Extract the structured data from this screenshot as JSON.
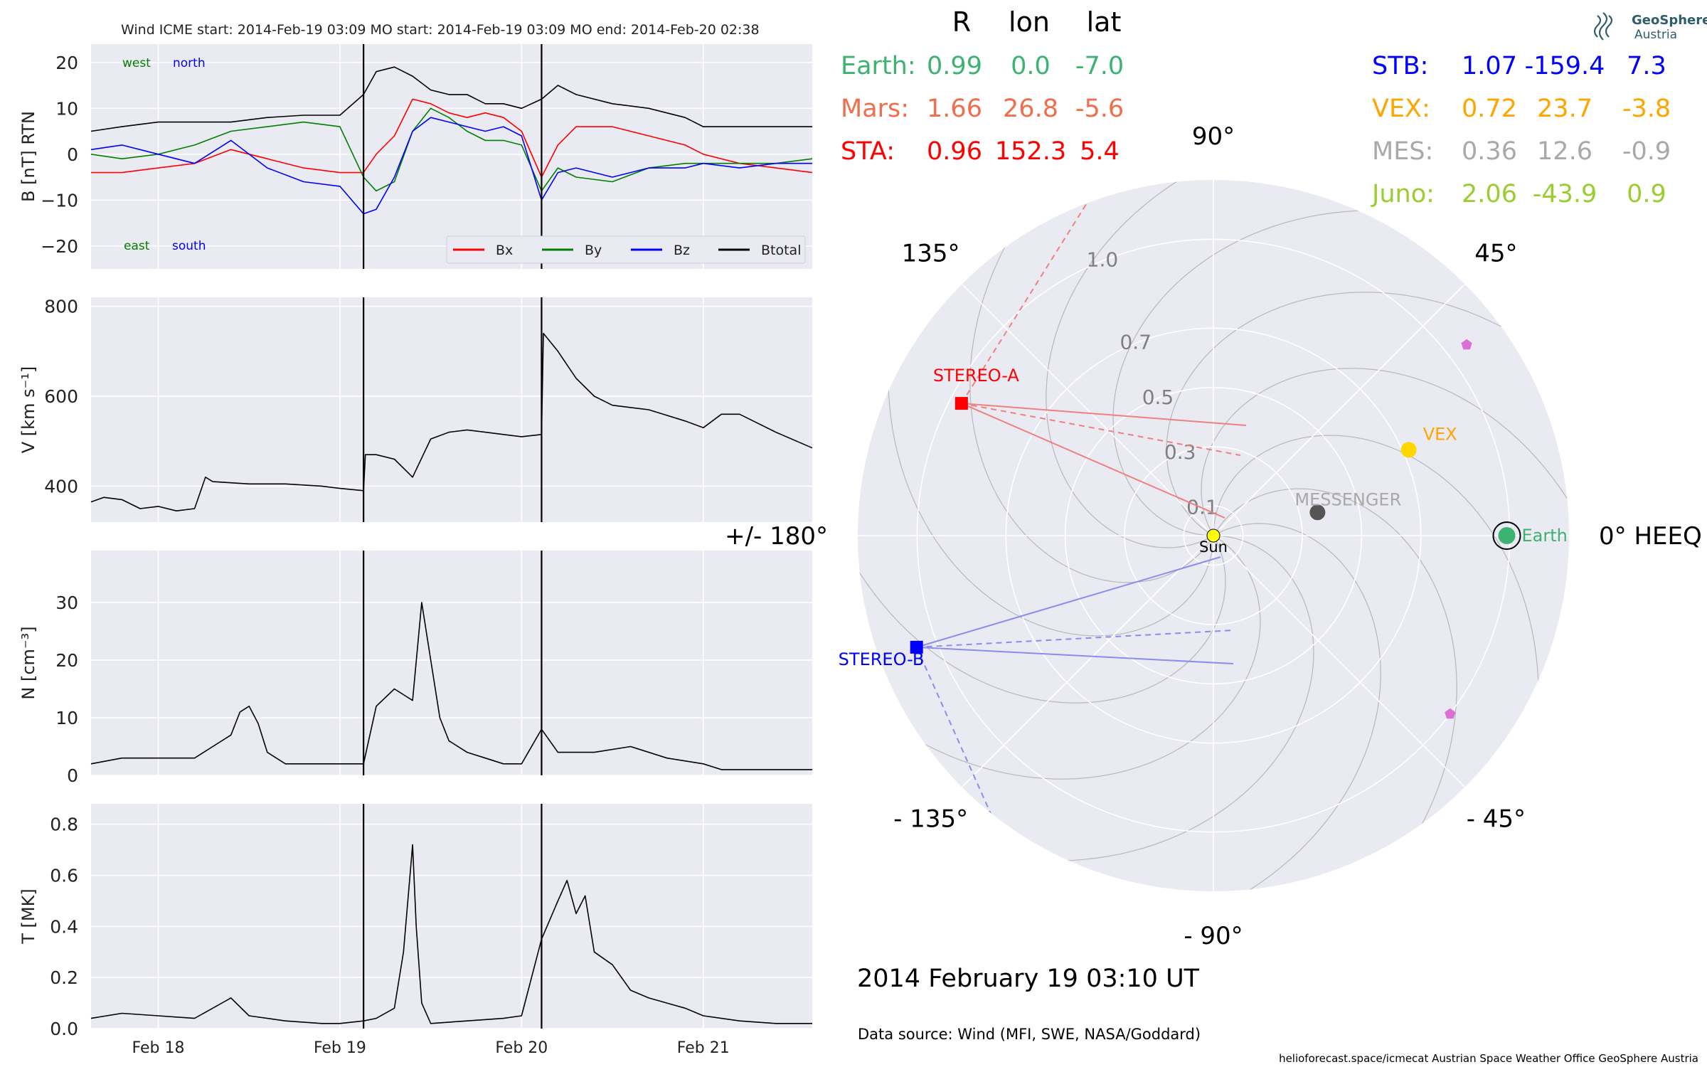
{
  "header": {
    "text": "Wind    ICME start: 2014-Feb-19 03:09   MO start: 2014-Feb-19 03:09   MO end: 2014-Feb-20 02:38"
  },
  "footer": {
    "timestamp": "2014 February 19  03:10 UT",
    "data_source": "Data source: Wind (MFI, SWE, NASA/Goddard)",
    "credits": "helioforecast.space/icmecat   Austrian Space Weather Office   GeoSphere Austria",
    "logo_line1": "GeoSphere",
    "logo_line2": "Austria"
  },
  "table": {
    "headers": [
      "R",
      "lon",
      "lat"
    ],
    "left": [
      {
        "name": "Earth:",
        "R": "0.99",
        "lon": "0.0",
        "lat": "-7.0",
        "color": "#3cb371"
      },
      {
        "name": "Mars:",
        "R": "1.66",
        "lon": "26.8",
        "lat": "-5.6",
        "color": "#f26d4b"
      },
      {
        "name": "STA:",
        "R": "0.96",
        "lon": "152.3",
        "lat": "5.4",
        "color": "#ff0000"
      }
    ],
    "right": [
      {
        "name": "STB:",
        "R": "1.07",
        "lon": "-159.4",
        "lat": "7.3",
        "color": "#0000ff"
      },
      {
        "name": "VEX:",
        "R": "0.72",
        "lon": "23.7",
        "lat": "-3.8",
        "color": "#ffa500"
      },
      {
        "name": "MES:",
        "R": "0.36",
        "lon": "12.6",
        "lat": "-0.9",
        "color": "#a9a9a9"
      },
      {
        "name": "Juno:",
        "R": "2.06",
        "lon": "-43.9",
        "lat": "0.9",
        "color": "#9acd32"
      }
    ]
  },
  "chart_data": [
    {
      "type": "line",
      "ylabel": "B [nT] RTN",
      "ylim": [
        -25,
        24
      ],
      "yticks": [
        "20",
        "10",
        "0",
        "−10",
        "−20"
      ],
      "xticks": [
        "Feb 18",
        "Feb 19",
        "Feb 20",
        "Feb 21"
      ],
      "grid": true,
      "annotations": {
        "west": "west",
        "north": "north",
        "east": "east",
        "south": "south"
      },
      "legend": {
        "placement": "lower-right",
        "entries": [
          "Bx",
          "By",
          "Bz",
          "Btotal"
        ]
      },
      "colors": {
        "Bx": "#ff0000",
        "By": "#008000",
        "Bz": "#0000ff",
        "Btotal": "#000000",
        "annot_west": "#008000",
        "annot_north": "#0000ff",
        "annot_east": "#008000",
        "annot_south": "#0000ff"
      },
      "vlines_day": [
        19.13,
        20.11
      ],
      "series": [
        {
          "name": "Btotal",
          "x": [
            17.63,
            17.8,
            18.0,
            18.2,
            18.4,
            18.6,
            18.8,
            19.0,
            19.13,
            19.2,
            19.3,
            19.4,
            19.5,
            19.6,
            19.7,
            19.8,
            19.9,
            20.0,
            20.11,
            20.2,
            20.3,
            20.5,
            20.7,
            20.9,
            21.0,
            21.2,
            21.4,
            21.6
          ],
          "y": [
            5,
            6,
            7,
            7,
            7,
            8,
            8.5,
            8.5,
            13,
            18,
            19,
            17,
            14,
            13,
            13,
            11,
            11,
            10,
            12,
            15,
            13,
            11,
            10,
            8,
            6,
            6,
            6,
            6
          ]
        },
        {
          "name": "Bx",
          "x": [
            17.63,
            17.8,
            18.0,
            18.2,
            18.4,
            18.6,
            18.8,
            19.0,
            19.13,
            19.2,
            19.3,
            19.4,
            19.5,
            19.6,
            19.7,
            19.8,
            19.9,
            20.0,
            20.11,
            20.2,
            20.3,
            20.5,
            20.7,
            20.9,
            21.0,
            21.2,
            21.4,
            21.6
          ],
          "y": [
            -4,
            -4,
            -3,
            -2,
            1,
            -1,
            -3,
            -4,
            -4,
            0,
            4,
            12,
            11,
            9,
            8,
            9,
            8,
            5,
            -5,
            2,
            6,
            6,
            4,
            2,
            0,
            -2,
            -3,
            -4
          ]
        },
        {
          "name": "By",
          "x": [
            17.63,
            17.8,
            18.0,
            18.2,
            18.4,
            18.6,
            18.8,
            19.0,
            19.13,
            19.2,
            19.3,
            19.4,
            19.5,
            19.6,
            19.7,
            19.8,
            19.9,
            20.0,
            20.11,
            20.2,
            20.3,
            20.5,
            20.7,
            20.9,
            21.0,
            21.2,
            21.4,
            21.6
          ],
          "y": [
            0,
            -1,
            0,
            2,
            5,
            6,
            7,
            6,
            -5,
            -8,
            -6,
            5,
            10,
            8,
            5,
            3,
            3,
            2,
            -8,
            -3,
            -5,
            -6,
            -3,
            -2,
            -2,
            -2,
            -2,
            -1
          ]
        },
        {
          "name": "Bz",
          "x": [
            17.63,
            17.8,
            18.0,
            18.2,
            18.4,
            18.6,
            18.8,
            19.0,
            19.13,
            19.2,
            19.3,
            19.4,
            19.5,
            19.6,
            19.7,
            19.8,
            19.9,
            20.0,
            20.11,
            20.2,
            20.3,
            20.5,
            20.7,
            20.9,
            21.0,
            21.2,
            21.4,
            21.6
          ],
          "y": [
            1,
            2,
            0,
            -2,
            3,
            -3,
            -6,
            -7,
            -13,
            -12,
            -5,
            5,
            8,
            7,
            6,
            5,
            6,
            4,
            -10,
            -4,
            -3,
            -5,
            -3,
            -3,
            -2,
            -3,
            -2,
            -2
          ]
        }
      ]
    },
    {
      "type": "line",
      "ylabel": "V [km s⁻¹]",
      "ylim": [
        320,
        820
      ],
      "yticks": [
        "800",
        "600",
        "400"
      ],
      "xticks": [
        "Feb 18",
        "Feb 19",
        "Feb 20",
        "Feb 21"
      ],
      "grid": true,
      "vlines_day": [
        19.13,
        20.11
      ],
      "series": [
        {
          "name": "",
          "x": [
            17.63,
            17.7,
            17.8,
            17.9,
            18.0,
            18.1,
            18.2,
            18.26,
            18.3,
            18.5,
            18.7,
            18.9,
            19.0,
            19.13,
            19.14,
            19.2,
            19.3,
            19.4,
            19.5,
            19.6,
            19.7,
            19.8,
            19.9,
            20.0,
            20.11,
            20.12,
            20.2,
            20.3,
            20.4,
            20.5,
            20.7,
            20.9,
            21.0,
            21.1,
            21.2,
            21.4,
            21.6
          ],
          "y": [
            365,
            375,
            370,
            350,
            355,
            345,
            350,
            420,
            410,
            405,
            405,
            400,
            395,
            390,
            470,
            470,
            460,
            420,
            505,
            520,
            525,
            520,
            515,
            510,
            515,
            740,
            700,
            640,
            600,
            580,
            570,
            545,
            530,
            560,
            560,
            520,
            485
          ]
        }
      ]
    },
    {
      "type": "line",
      "ylabel": "N [cm⁻³]",
      "ylim": [
        0,
        39
      ],
      "yticks": [
        "30",
        "20",
        "10",
        "0"
      ],
      "xticks": [
        "Feb 18",
        "Feb 19",
        "Feb 20",
        "Feb 21"
      ],
      "grid": true,
      "vlines_day": [
        19.13,
        20.11
      ],
      "series": [
        {
          "name": "",
          "x": [
            17.63,
            17.8,
            18.0,
            18.2,
            18.3,
            18.4,
            18.45,
            18.5,
            18.55,
            18.6,
            18.7,
            18.9,
            19.0,
            19.13,
            19.2,
            19.3,
            19.4,
            19.45,
            19.5,
            19.55,
            19.6,
            19.7,
            19.8,
            19.9,
            20.0,
            20.11,
            20.2,
            20.4,
            20.6,
            20.8,
            21.0,
            21.1,
            21.3,
            21.5,
            21.6
          ],
          "y": [
            2,
            3,
            3,
            3,
            5,
            7,
            11,
            12,
            9,
            4,
            2,
            2,
            2,
            2,
            12,
            15,
            13,
            30,
            20,
            10,
            6,
            4,
            3,
            2,
            2,
            8,
            4,
            4,
            5,
            3,
            2,
            1,
            1,
            1,
            1
          ]
        }
      ]
    },
    {
      "type": "line",
      "ylabel": "T [MK]",
      "ylim": [
        0,
        0.88
      ],
      "yticks": [
        "0.8",
        "0.6",
        "0.4",
        "0.2",
        "0.0"
      ],
      "xticks": [
        "Feb 18",
        "Feb 19",
        "Feb 20",
        "Feb 21"
      ],
      "grid": true,
      "vlines_day": [
        19.13,
        20.11
      ],
      "series": [
        {
          "name": "",
          "x": [
            17.63,
            17.8,
            18.0,
            18.2,
            18.3,
            18.4,
            18.5,
            18.7,
            18.9,
            19.0,
            19.13,
            19.2,
            19.3,
            19.35,
            19.4,
            19.42,
            19.45,
            19.5,
            19.7,
            19.9,
            20.0,
            20.11,
            20.2,
            20.25,
            20.3,
            20.35,
            20.4,
            20.5,
            20.6,
            20.7,
            20.8,
            20.9,
            21.0,
            21.2,
            21.4,
            21.6
          ],
          "y": [
            0.04,
            0.06,
            0.05,
            0.04,
            0.08,
            0.12,
            0.05,
            0.03,
            0.02,
            0.02,
            0.03,
            0.04,
            0.08,
            0.3,
            0.72,
            0.4,
            0.1,
            0.02,
            0.03,
            0.04,
            0.05,
            0.35,
            0.5,
            0.58,
            0.45,
            0.52,
            0.3,
            0.25,
            0.15,
            0.12,
            0.1,
            0.08,
            0.05,
            0.03,
            0.02,
            0.02
          ]
        }
      ]
    },
    {
      "type": "scatter",
      "projection": "polar",
      "rlim": [
        0,
        1.2
      ],
      "rticks": [
        "0.1",
        "0.3",
        "0.5",
        "0.7",
        "1.0"
      ],
      "rtick_values": [
        0.1,
        0.3,
        0.5,
        0.7,
        1.0
      ],
      "angle_labels": [
        {
          "deg": 0,
          "label": "0° HEEQ"
        },
        {
          "deg": 45,
          "label": "45°"
        },
        {
          "deg": 90,
          "label": "90°"
        },
        {
          "deg": 135,
          "label": "135°"
        },
        {
          "deg": 180,
          "label": "+/- 180°"
        },
        {
          "deg": -135,
          "label": "- 135°"
        },
        {
          "deg": -90,
          "label": "- 90°"
        },
        {
          "deg": -45,
          "label": "- 45°"
        }
      ],
      "bodies": [
        {
          "name": "Sun",
          "label": "Sun",
          "lon": 0,
          "r": 0.0,
          "color": "#ffff00",
          "marker": "circle"
        },
        {
          "name": "Earth",
          "label": "Earth",
          "lon": 0.0,
          "r": 0.99,
          "color": "#3cb371",
          "marker": "circle"
        },
        {
          "name": "VEX",
          "label": "VEX",
          "lon": 23.7,
          "r": 0.72,
          "color": "#ffd700",
          "marker": "circle",
          "label_color": "#ffa500"
        },
        {
          "name": "MESSENGER",
          "label": "MESSENGER",
          "lon": 12.6,
          "r": 0.36,
          "color": "#555555",
          "marker": "circle",
          "label_color": "#a9a9a9"
        },
        {
          "name": "STEREO-A",
          "label": "STEREO-A",
          "lon": 152.3,
          "r": 0.96,
          "color": "#ff0000",
          "marker": "square"
        },
        {
          "name": "STEREO-B",
          "label": "STEREO-B",
          "lon": -159.4,
          "r": 1.07,
          "color": "#0000ff",
          "marker": "square"
        },
        {
          "name": "Mars",
          "label": "",
          "lon": 26.8,
          "r": 1.66,
          "color": "#da70d6",
          "marker": "pentagon"
        },
        {
          "name": "Juno",
          "label": "",
          "lon": -43.9,
          "r": 2.06,
          "color": "#da70d6",
          "marker": "pentagon"
        }
      ]
    }
  ]
}
